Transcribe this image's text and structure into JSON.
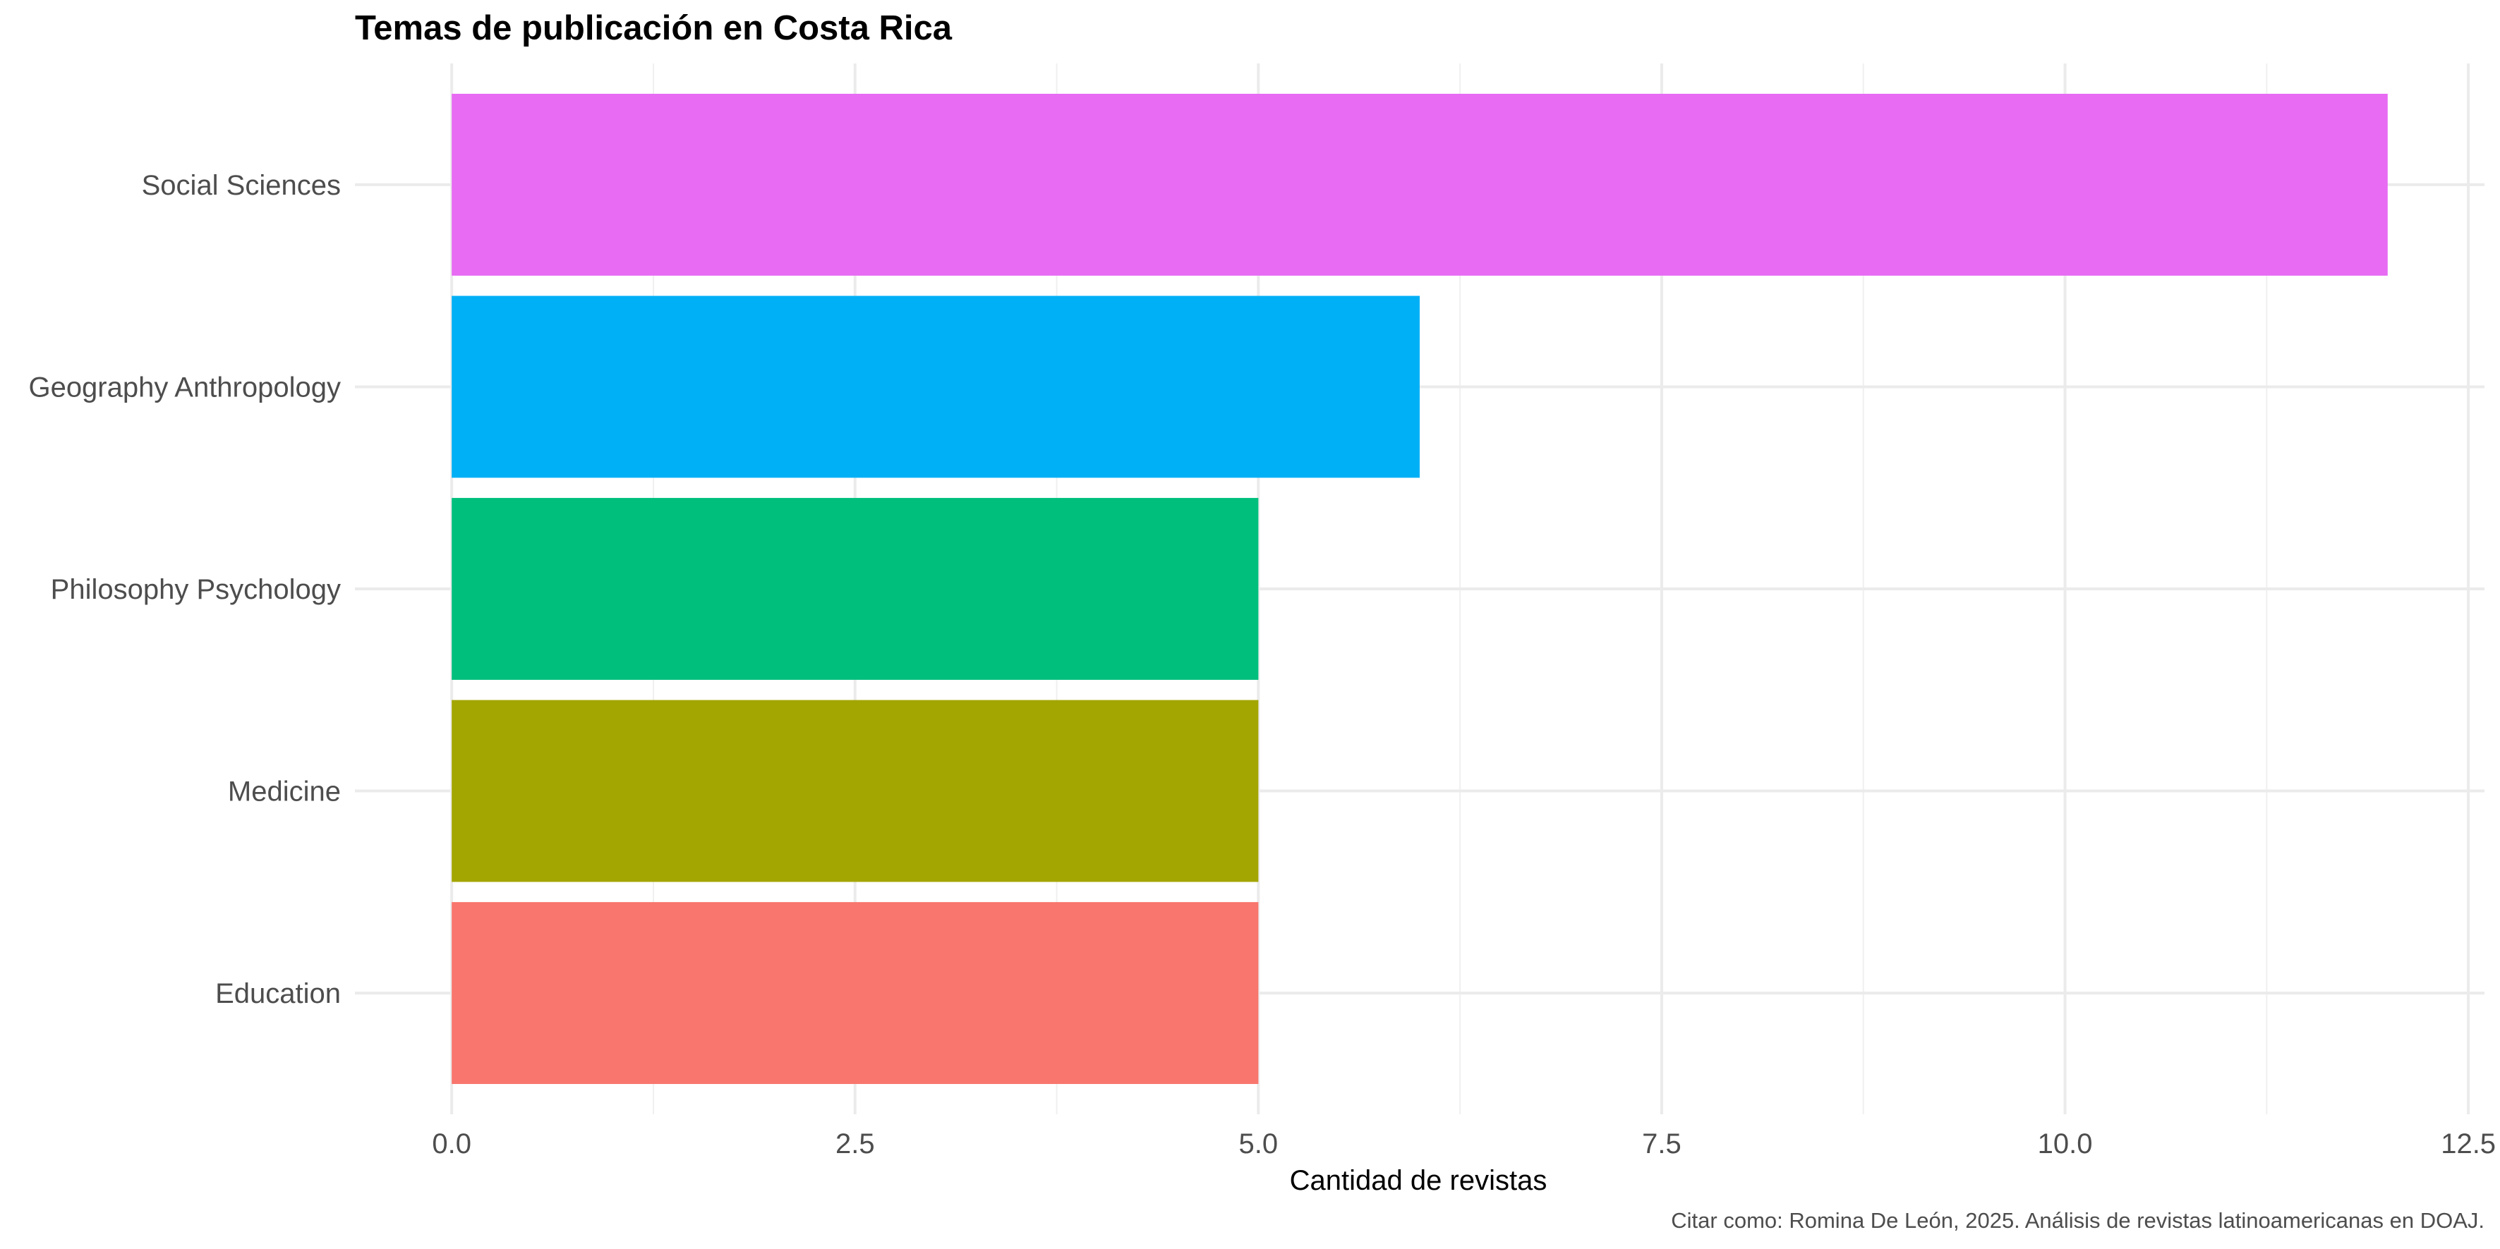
{
  "chart_data": {
    "type": "bar",
    "orientation": "horizontal",
    "title": "Temas de publicación en Costa Rica",
    "xlabel": "Cantidad de revistas",
    "ylabel": "",
    "caption": "Citar como: Romina De León, 2025. Análisis de revistas latinoamericanas en DOAJ.",
    "categories": [
      "Social Sciences",
      "Geography Anthropology",
      "Philosophy Psychology",
      "Medicine",
      "Education"
    ],
    "values": [
      12,
      6,
      5,
      5,
      5
    ],
    "colors": [
      "#E76BF3",
      "#00B0F6",
      "#00BF7D",
      "#A3A500",
      "#F8766D"
    ],
    "xticks": [
      0,
      2.5,
      5,
      7.5,
      10,
      12.5
    ],
    "xtick_labels": [
      "0.0",
      "2.5",
      "5.0",
      "7.5",
      "10.0",
      "12.5"
    ],
    "xlim": [
      -0.6,
      12.6
    ],
    "grid": true,
    "legend": "none"
  }
}
